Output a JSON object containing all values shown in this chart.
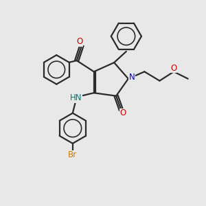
{
  "background_color": "#e8e8e8",
  "bond_color": "#2a2a2a",
  "N_color": "#0000cc",
  "O_color": "#cc0000",
  "Br_color": "#cc7700",
  "NH_color": "#007777",
  "line_width": 1.6,
  "figsize": [
    3.0,
    3.0
  ],
  "dpi": 100,
  "xlim": [
    0,
    10
  ],
  "ylim": [
    0,
    10
  ]
}
